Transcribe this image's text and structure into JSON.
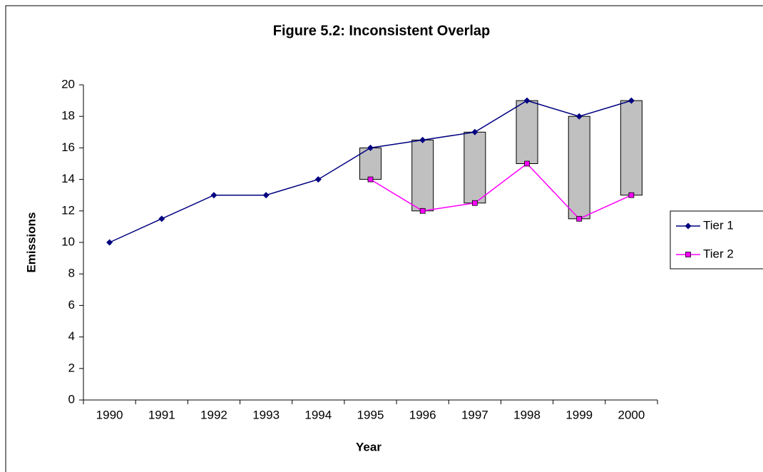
{
  "chart_data": {
    "type": "line",
    "title": "Figure 5.2: Inconsistent Overlap",
    "x_label": "Year",
    "y_label": "Emissions",
    "categories": [
      "1990",
      "1991",
      "1992",
      "1993",
      "1994",
      "1995",
      "1996",
      "1997",
      "1998",
      "1999",
      "2000"
    ],
    "series": [
      {
        "name": "Tier 1",
        "color": "#000080",
        "marker": "diamond",
        "values": [
          10,
          11.5,
          13,
          13,
          14,
          16,
          16.5,
          17,
          19,
          18,
          19
        ]
      },
      {
        "name": "Tier 2",
        "color": "#ff00ff",
        "marker": "square",
        "values": [
          null,
          null,
          null,
          null,
          null,
          14,
          12,
          12.5,
          15,
          11.5,
          13
        ]
      }
    ],
    "up_down_bars": true,
    "bar_color": "#c0c0c0",
    "ylim": [
      0,
      20
    ],
    "yticks": [
      0,
      2,
      4,
      6,
      8,
      10,
      12,
      14,
      16,
      18,
      20
    ],
    "grid": false,
    "legend": "right"
  }
}
